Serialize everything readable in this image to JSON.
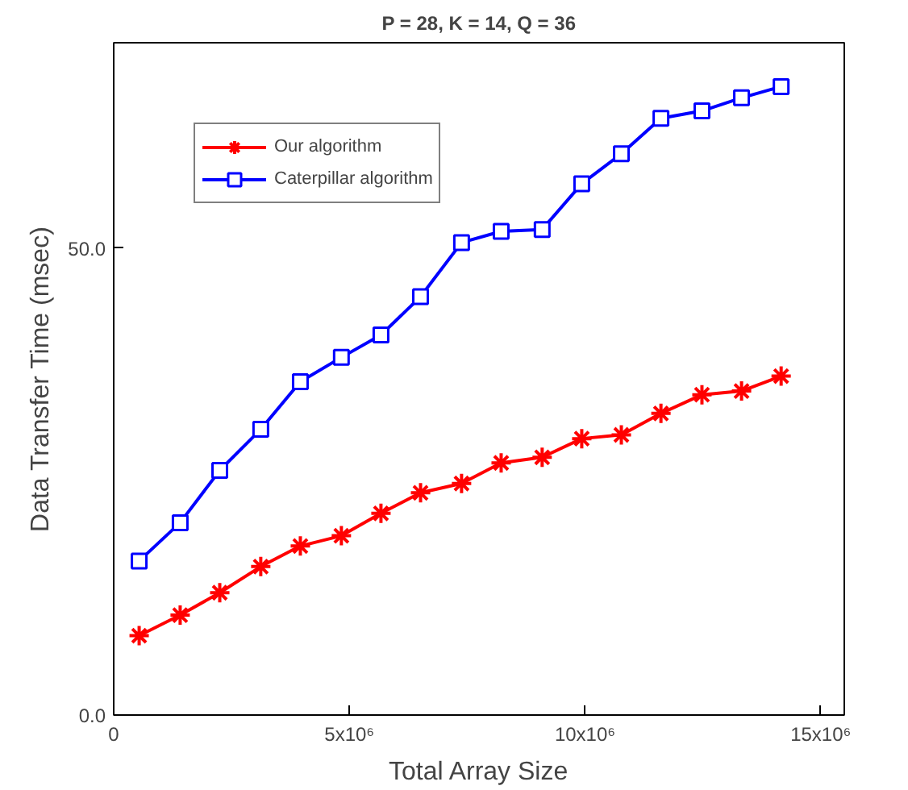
{
  "chart_data": {
    "type": "line",
    "title": "P = 28, K = 14, Q = 36",
    "xlabel": "Total Array Size",
    "ylabel": "Data Transfer Time (msec)",
    "x": [
      540000,
      1410000,
      2250000,
      3120000,
      3960000,
      4830000,
      5670000,
      6510000,
      7380000,
      8220000,
      9090000,
      9930000,
      10770000,
      11610000,
      12480000,
      13320000,
      14160000
    ],
    "series": [
      {
        "name": "Our algorithm",
        "color": "#ff0000",
        "marker": "cross",
        "values": [
          8.5,
          10.7,
          13.1,
          15.9,
          18.1,
          19.2,
          21.6,
          23.8,
          24.8,
          27.0,
          27.6,
          29.6,
          30.0,
          32.3,
          34.3,
          34.7,
          36.3
        ]
      },
      {
        "name": "Caterpillar algorithm",
        "color": "#0000ff",
        "marker": "square",
        "values": [
          16.5,
          20.6,
          26.2,
          30.6,
          35.7,
          38.3,
          40.7,
          44.8,
          50.6,
          51.8,
          52.0,
          56.9,
          60.1,
          63.9,
          64.7,
          66.1,
          67.3
        ]
      }
    ],
    "xlim": [
      0,
      15500000
    ],
    "ylim": [
      0,
      72
    ],
    "xticks": [
      0,
      {
        "value": 5000000,
        "label": "5x10⁶"
      },
      {
        "value": 10000000,
        "label": "10x10⁶"
      },
      {
        "value": 15000000,
        "label": "15x10⁶"
      }
    ],
    "yticks": [
      {
        "value": 0,
        "label": "0.0"
      },
      {
        "value": 50,
        "label": "50.0"
      }
    ],
    "grid": false,
    "legend": "top left",
    "line_style": "solid"
  }
}
